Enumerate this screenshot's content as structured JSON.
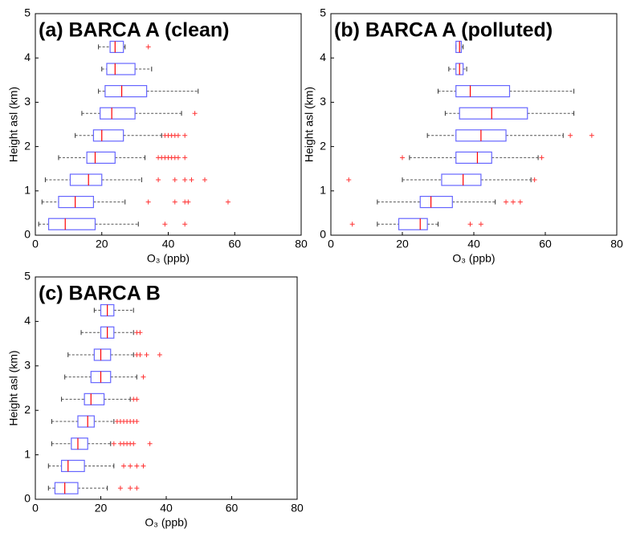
{
  "chart_data": [
    {
      "type": "boxplot",
      "title": "(a) BARCA A (clean)",
      "xlabel": "O₃ (ppb)",
      "ylabel": "Height asl (km)",
      "xlim": [
        0,
        80
      ],
      "xticks": [
        0,
        20,
        40,
        60,
        80
      ],
      "ylim": [
        0,
        5
      ],
      "yticks": [
        0,
        1,
        2,
        3,
        4,
        5
      ],
      "heights": [
        0.25,
        0.75,
        1.25,
        1.75,
        2.25,
        2.75,
        3.25,
        3.75,
        4.25
      ],
      "boxes": [
        {
          "low": 1,
          "q1": 4,
          "median": 9,
          "q3": 18,
          "high": 31,
          "outliers": [
            39,
            45
          ]
        },
        {
          "low": 2,
          "q1": 7,
          "median": 12,
          "q3": 17.5,
          "high": 27,
          "outliers": [
            34,
            42,
            45,
            46,
            58
          ]
        },
        {
          "low": 3,
          "q1": 10.5,
          "median": 16,
          "q3": 20,
          "high": 32,
          "outliers": [
            37,
            42,
            45,
            47,
            51
          ]
        },
        {
          "low": 7,
          "q1": 15.5,
          "median": 18,
          "q3": 24,
          "high": 33,
          "outliers": [
            37,
            38,
            39,
            40,
            41,
            42,
            43,
            45
          ]
        },
        {
          "low": 12,
          "q1": 17.5,
          "median": 20,
          "q3": 26.5,
          "high": 38,
          "outliers": [
            39,
            40,
            41,
            42,
            43,
            45
          ]
        },
        {
          "low": 14,
          "q1": 19.5,
          "median": 23,
          "q3": 30,
          "high": 44,
          "outliers": [
            48
          ]
        },
        {
          "low": 19,
          "q1": 21,
          "median": 26,
          "q3": 33.5,
          "high": 49,
          "outliers": []
        },
        {
          "low": 20,
          "q1": 21.5,
          "median": 24,
          "q3": 30,
          "high": 35,
          "outliers": []
        },
        {
          "low": 19,
          "q1": 22.5,
          "median": 24,
          "q3": 26.5,
          "high": 27,
          "outliers": [
            34
          ]
        }
      ]
    },
    {
      "type": "boxplot",
      "title": "(b) BARCA A (polluted)",
      "xlabel": "O₃ (ppb)",
      "ylabel": "Height asl (km)",
      "xlim": [
        0,
        80
      ],
      "xticks": [
        0,
        20,
        40,
        60,
        80
      ],
      "ylim": [
        0,
        5
      ],
      "yticks": [
        0,
        1,
        2,
        3,
        4,
        5
      ],
      "heights": [
        0.25,
        0.75,
        1.25,
        1.75,
        2.25,
        2.75,
        3.25,
        3.75,
        4.25
      ],
      "boxes": [
        {
          "low": 13,
          "q1": 19,
          "median": 25,
          "q3": 27,
          "high": 30,
          "outliers": [
            6,
            39,
            42
          ]
        },
        {
          "low": 13,
          "q1": 25,
          "median": 28,
          "q3": 34,
          "high": 46,
          "outliers": [
            49,
            51,
            53
          ]
        },
        {
          "low": 20,
          "q1": 31,
          "median": 37,
          "q3": 42,
          "high": 56,
          "outliers": [
            5,
            57
          ]
        },
        {
          "low": 22,
          "q1": 35,
          "median": 41,
          "q3": 45,
          "high": 58,
          "outliers": [
            20,
            59
          ]
        },
        {
          "low": 27,
          "q1": 35,
          "median": 42,
          "q3": 49,
          "high": 65,
          "outliers": [
            67,
            73
          ]
        },
        {
          "low": 32,
          "q1": 36,
          "median": 45,
          "q3": 55,
          "high": 68,
          "outliers": []
        },
        {
          "low": 30,
          "q1": 35,
          "median": 39,
          "q3": 50,
          "high": 68,
          "outliers": []
        },
        {
          "low": 33,
          "q1": 35,
          "median": 36,
          "q3": 37,
          "high": 38,
          "outliers": []
        },
        {
          "low": 35,
          "q1": 35,
          "median": 36,
          "q3": 36.5,
          "high": 37,
          "outliers": []
        }
      ]
    },
    {
      "type": "boxplot",
      "title": "(c) BARCA B",
      "xlabel": "O₃ (ppb)",
      "ylabel": "Height asl (km)",
      "xlim": [
        0,
        80
      ],
      "xticks": [
        0,
        20,
        40,
        60,
        80
      ],
      "ylim": [
        0,
        5
      ],
      "yticks": [
        0,
        1,
        2,
        3,
        4,
        5
      ],
      "heights": [
        0.25,
        0.75,
        1.25,
        1.75,
        2.25,
        2.75,
        3.25,
        3.75,
        4.25
      ],
      "boxes": [
        {
          "low": 4,
          "q1": 6,
          "median": 9,
          "q3": 13,
          "high": 22,
          "outliers": [
            26,
            29,
            31
          ]
        },
        {
          "low": 4,
          "q1": 8,
          "median": 10,
          "q3": 15,
          "high": 24,
          "outliers": [
            27,
            29,
            31,
            33
          ]
        },
        {
          "low": 5,
          "q1": 11,
          "median": 13,
          "q3": 16,
          "high": 23,
          "outliers": [
            24,
            26,
            27,
            28,
            29,
            30,
            35
          ]
        },
        {
          "low": 5,
          "q1": 13,
          "median": 16,
          "q3": 18,
          "high": 24,
          "outliers": [
            25,
            26,
            27,
            28,
            29,
            30,
            31
          ]
        },
        {
          "low": 8,
          "q1": 15,
          "median": 17,
          "q3": 21,
          "high": 29,
          "outliers": [
            30,
            31
          ]
        },
        {
          "low": 9,
          "q1": 17,
          "median": 20,
          "q3": 23,
          "high": 31,
          "outliers": [
            33
          ]
        },
        {
          "low": 10,
          "q1": 18,
          "median": 20,
          "q3": 23,
          "high": 30,
          "outliers": [
            31,
            32,
            34,
            38
          ]
        },
        {
          "low": 14,
          "q1": 20,
          "median": 22,
          "q3": 24,
          "high": 30,
          "outliers": [
            31,
            32
          ]
        },
        {
          "low": 18,
          "q1": 20,
          "median": 22,
          "q3": 24,
          "high": 30,
          "outliers": []
        }
      ]
    }
  ]
}
